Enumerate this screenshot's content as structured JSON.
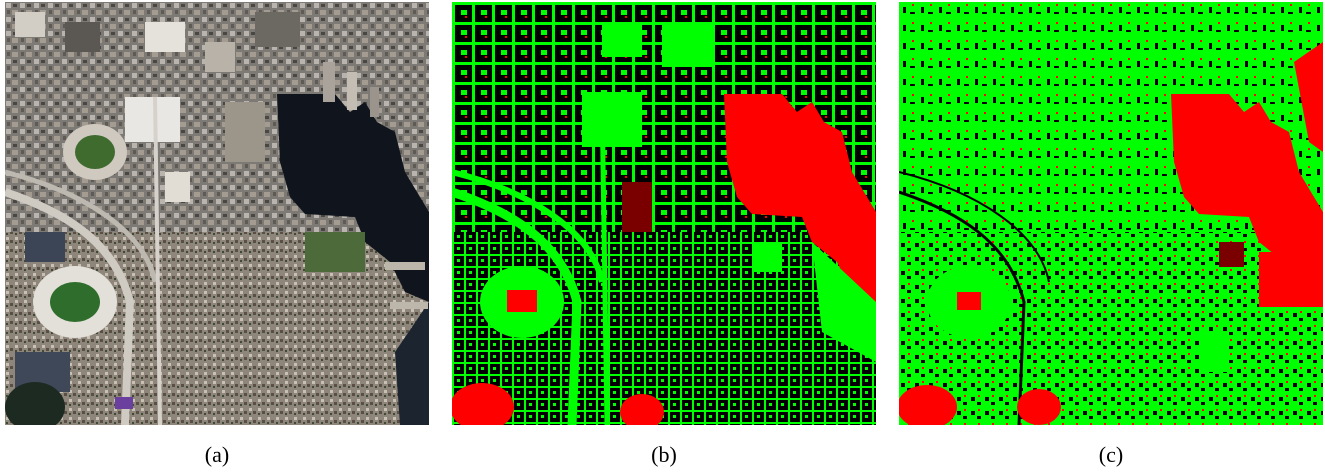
{
  "figure": {
    "panels": [
      {
        "caption": "(a)",
        "content": "aerial-photo"
      },
      {
        "caption": "(b)",
        "content": "classification-map"
      },
      {
        "caption": "(c)",
        "content": "classification-map"
      }
    ]
  },
  "colors": {
    "class_green": "#00ff00",
    "class_red": "#ff0000",
    "class_black": "#000000",
    "water_dark": "#0f141c",
    "urban_gray": "#8a8580"
  }
}
